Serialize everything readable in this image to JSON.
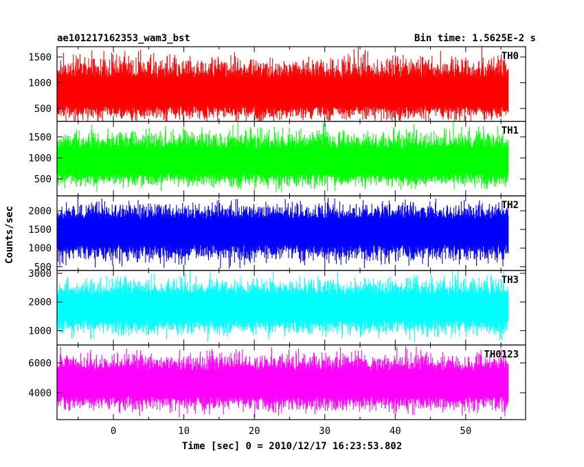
{
  "chart_data": {
    "type": "line",
    "title": "ae101217162353_wam3_bst",
    "bin_time_label": "Bin time: 1.5625E-2 s",
    "xlabel": "Time [sec] 0 = 2010/12/17 16:23:53.802",
    "ylabel": "Counts/sec",
    "xlim": [
      -8,
      58.5
    ],
    "x_range_data": [
      -7.9,
      56.1
    ],
    "xticks": [
      0,
      10,
      20,
      30,
      40,
      50
    ],
    "xtick_labels": [
      "0",
      "10",
      "20",
      "30",
      "40",
      "50"
    ],
    "grid": false,
    "panels": [
      {
        "name": "TH0",
        "color": "#ff0000",
        "ylim": [
          250,
          1700
        ],
        "yticks": [
          500,
          1000,
          1500
        ],
        "ytick_labels": [
          "500",
          "1000",
          "1500"
        ],
        "mean": 760,
        "low": 150,
        "high": 1700
      },
      {
        "name": "TH1",
        "color": "#00ff00",
        "ylim": [
          100,
          1870
        ],
        "yticks": [
          500,
          1000,
          1500
        ],
        "ytick_labels": [
          "500",
          "1000",
          "1500"
        ],
        "mean": 870,
        "low": 180,
        "high": 1870
      },
      {
        "name": "TH2",
        "color": "#0000ff",
        "ylim": [
          400,
          2400
        ],
        "yticks": [
          500,
          1000,
          1500,
          2000
        ],
        "ytick_labels": [
          "500",
          "1000",
          "1500",
          "2000"
        ],
        "mean": 1450,
        "low": 420,
        "high": 2400
      },
      {
        "name": "TH3",
        "color": "#00ffff",
        "ylim": [
          500,
          3100
        ],
        "yticks": [
          1000,
          2000,
          3000
        ],
        "ytick_labels": [
          "1000",
          "2000",
          "3000"
        ],
        "mean": 1800,
        "low": 600,
        "high": 3100
      },
      {
        "name": "TH0123",
        "color": "#ff00ff",
        "ylim": [
          2200,
          7200
        ],
        "yticks": [
          4000,
          6000
        ],
        "ytick_labels": [
          "4000",
          "6000"
        ],
        "mean": 4550,
        "low": 2300,
        "high": 7200
      }
    ]
  }
}
